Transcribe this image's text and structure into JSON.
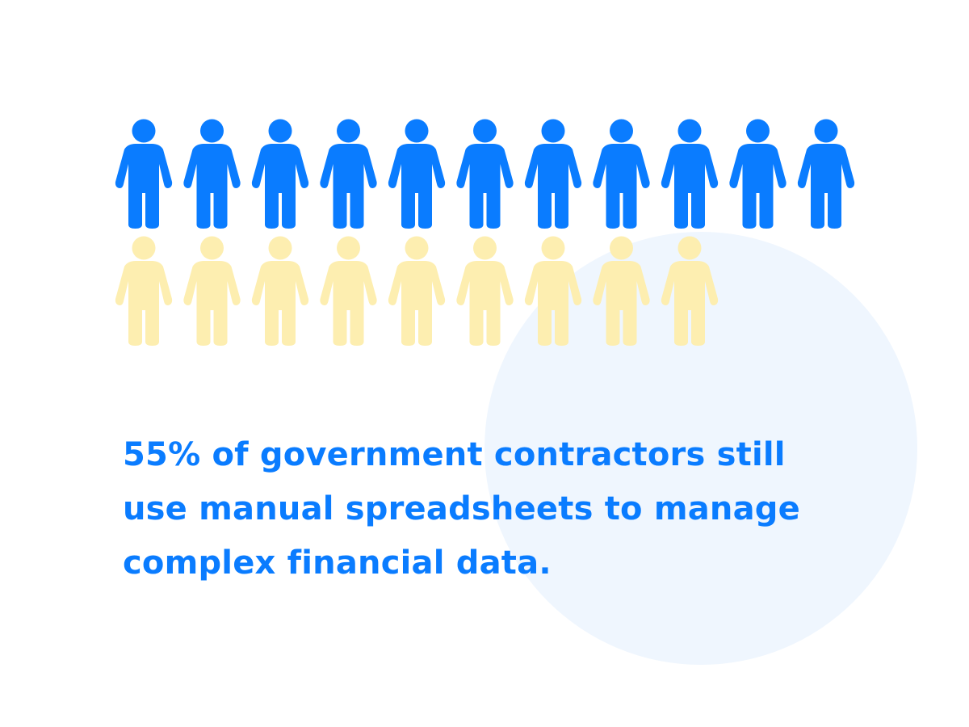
{
  "chart_data": {
    "type": "pictogram",
    "title": "55% of government contractors still use manual spreadsheets to manage complex financial data.",
    "series": [
      {
        "color": "#0a7cff",
        "values": [
          11
        ]
      },
      {
        "color": "#fdeeb0",
        "values": [
          9
        ]
      }
    ]
  }
}
